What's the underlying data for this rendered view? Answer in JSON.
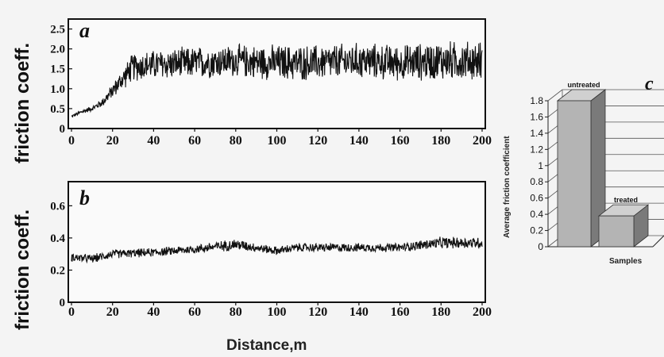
{
  "chart_data": [
    {
      "id": "a",
      "type": "line",
      "panel_label": "a",
      "ylabel": "friction coeff.",
      "xlim": [
        0,
        200
      ],
      "ylim": [
        0,
        2.75
      ],
      "x_ticks": [
        "0",
        "20",
        "40",
        "60",
        "80",
        "100",
        "120",
        "140",
        "160",
        "180",
        "200"
      ],
      "y_ticks": [
        "0",
        "0.5",
        "1.0",
        "1.5",
        "2.0",
        "2.5"
      ],
      "y_tick_values": [
        0,
        0.5,
        1.0,
        1.5,
        2.0,
        2.5
      ],
      "series": [
        {
          "x": [
            0,
            5,
            10,
            15,
            20,
            25,
            30,
            40,
            60,
            80,
            100,
            120,
            140,
            160,
            180,
            200
          ],
          "mean": [
            0.3,
            0.42,
            0.5,
            0.65,
            0.95,
            1.25,
            1.55,
            1.6,
            1.65,
            1.7,
            1.65,
            1.65,
            1.7,
            1.65,
            1.7,
            1.7
          ],
          "noise": [
            0.05,
            0.06,
            0.07,
            0.12,
            0.2,
            0.3,
            0.4,
            0.42,
            0.45,
            0.45,
            0.5,
            0.5,
            0.5,
            0.5,
            0.55,
            0.55
          ]
        }
      ]
    },
    {
      "id": "b",
      "type": "line",
      "panel_label": "b",
      "ylabel": "friction coeff.",
      "xlabel": "Distance,m",
      "xlim": [
        0,
        200
      ],
      "ylim": [
        0,
        0.75
      ],
      "x_ticks": [
        "0",
        "20",
        "40",
        "60",
        "80",
        "100",
        "120",
        "140",
        "160",
        "180",
        "200"
      ],
      "y_ticks": [
        "0",
        "0.2",
        "0.4",
        "0.6"
      ],
      "y_tick_values": [
        0,
        0.2,
        0.4,
        0.6
      ],
      "series": [
        {
          "x": [
            0,
            10,
            20,
            40,
            60,
            80,
            90,
            100,
            110,
            120,
            140,
            160,
            180,
            200
          ],
          "mean": [
            0.28,
            0.27,
            0.3,
            0.31,
            0.33,
            0.36,
            0.34,
            0.32,
            0.34,
            0.34,
            0.34,
            0.34,
            0.37,
            0.37
          ],
          "noise": [
            0.03,
            0.03,
            0.03,
            0.03,
            0.03,
            0.04,
            0.03,
            0.03,
            0.03,
            0.03,
            0.03,
            0.03,
            0.04,
            0.04
          ]
        }
      ]
    },
    {
      "id": "c",
      "type": "bar",
      "panel_label": "c",
      "ylabel": "Average friction coefficient",
      "xlabel": "Samples",
      "categories": [
        "untreated",
        "treated"
      ],
      "values": [
        1.8,
        0.38
      ],
      "ylim": [
        0,
        1.8
      ],
      "y_ticks": [
        "0",
        "0.2",
        "0.4",
        "0.6",
        "0.8",
        "1",
        "1.2",
        "1.4",
        "1.6",
        "1.8"
      ],
      "grid": true,
      "colors": {
        "bar_face": "#b4b4b4",
        "bar_top": "#d0d0d0",
        "bar_side": "#7a7a7a"
      }
    }
  ],
  "colors": {
    "trace": "#111111",
    "background": "#f4f4f4",
    "axes": "#111111"
  }
}
